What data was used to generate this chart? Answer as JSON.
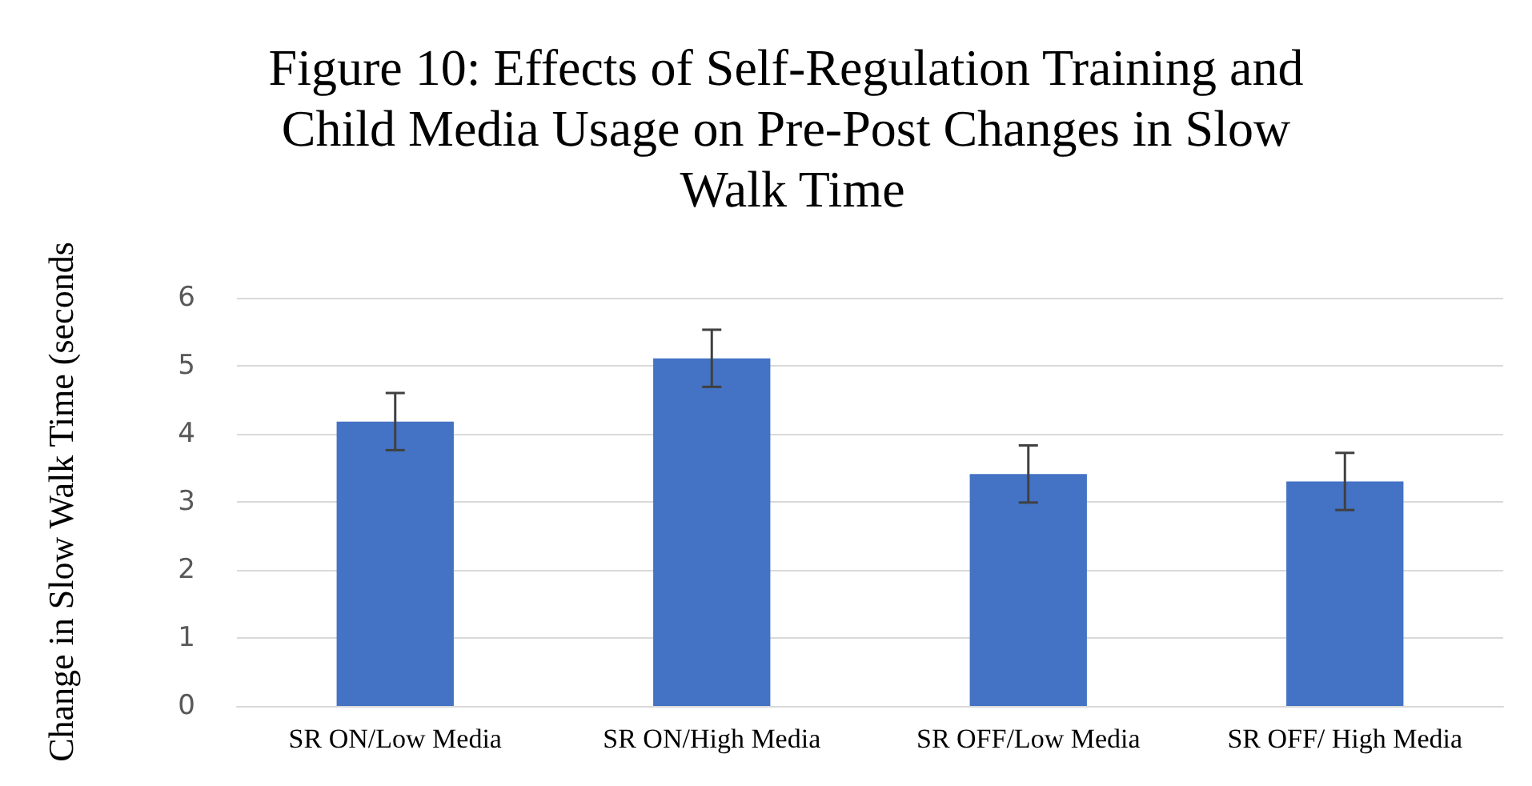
{
  "chart_data": {
    "type": "bar",
    "title": "Figure 10: Effects of Self-Regulation Training and Child Media Usage on Pre-Post Changes in Slow Walk Time",
    "ylabel": "Change in Slow Walk Time (seconds",
    "categories": [
      "SR ON/Low Media",
      "SR ON/High Media",
      "SR OFF/Low Media",
      "SR OFF/ High Media"
    ],
    "values": [
      4.18,
      5.11,
      3.41,
      3.3
    ],
    "errors": [
      0.42,
      0.42,
      0.42,
      0.42
    ],
    "color": "#4472c4",
    "ylim": [
      0,
      6
    ],
    "yticks": [
      0,
      1,
      2,
      3,
      4,
      5,
      6
    ],
    "grid": "y"
  }
}
